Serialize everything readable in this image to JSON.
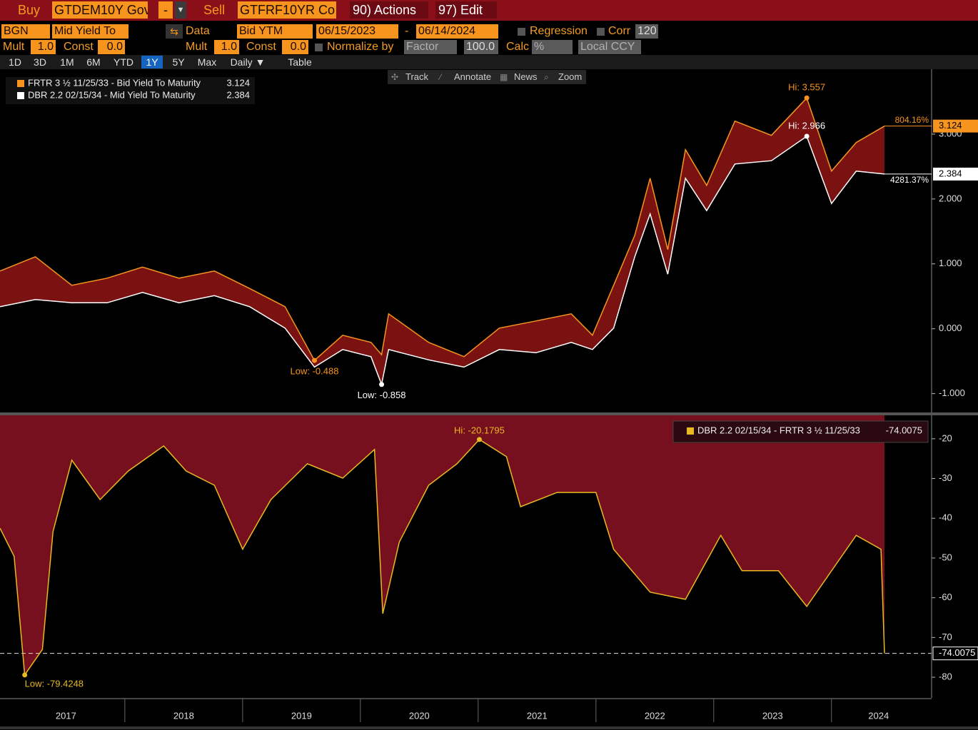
{
  "toolbar": {
    "buy": "Buy",
    "buy_ticker": "GTDEM10Y Gov",
    "minus": "-",
    "sell": "Sell",
    "sell_ticker": "GTFRF10YR Co",
    "actions": "90) Actions",
    "edit": "97) Edit"
  },
  "settings": {
    "source": "BGN",
    "field1": "Mid Yield To",
    "data": "Data",
    "field2": "Bid YTM",
    "start": "06/15/2023",
    "dash": "-",
    "end": "06/14/2024",
    "regression": "Regression",
    "corr": "Corr",
    "corr_n": "120",
    "mult1": "Mult",
    "mult1_v": "1.0",
    "const1": "Const",
    "const1_v": "0.0",
    "mult2": "Mult",
    "mult2_v": "1.0",
    "const2": "Const",
    "const2_v": "0.0",
    "normalize": "Normalize by",
    "factor": "Factor",
    "factor_v": "100.0",
    "calc": "Calc",
    "calc_v": "%",
    "ccy": "Local CCY"
  },
  "periods": [
    "1D",
    "3D",
    "1M",
    "6M",
    "YTD",
    "1Y",
    "5Y",
    "Max",
    "Daily ▼",
    "Table"
  ],
  "active_period": "1Y",
  "chart_tools": [
    "Track",
    "Annotate",
    "News",
    "Zoom"
  ],
  "chart_data": [
    {
      "type": "line",
      "legend": "upper left",
      "grid": false,
      "x": [
        2016.94,
        2017.24,
        2017.55,
        2017.85,
        2018.15,
        2018.46,
        2018.76,
        2019.06,
        2019.36,
        2019.61,
        2019.85,
        2020.09,
        2020.18,
        2020.24,
        2020.58,
        2020.88,
        2021.18,
        2021.49,
        2021.79,
        2021.97,
        2022.15,
        2022.33,
        2022.46,
        2022.61,
        2022.76,
        2022.94,
        2023.18,
        2023.49,
        2023.79,
        2024.0,
        2024.21,
        2024.45
      ],
      "xlim": [
        2016.94,
        2024.85
      ],
      "ylim": [
        -1.29,
        4.0
      ],
      "yticks": [
        {
          "value": -1,
          "label": "-1.000"
        },
        {
          "value": 0,
          "label": "0.000"
        },
        {
          "value": 1,
          "label": "1.000"
        },
        {
          "value": 2,
          "label": "2.000"
        },
        {
          "value": 3,
          "label": "3.000"
        }
      ],
      "band_color": "#7a1212",
      "series": [
        {
          "name": "FRTR 3 ½ 11/25/33 - Bid Yield To Maturity",
          "color": "#f7941d",
          "hi_label": "Hi: 3.557",
          "low_label": "Low: -0.488",
          "change_label": "804.16%",
          "values": [
            0.89,
            1.11,
            0.67,
            0.78,
            0.95,
            0.78,
            0.89,
            0.62,
            0.34,
            -0.488,
            -0.1,
            -0.21,
            -0.4,
            0.23,
            -0.21,
            -0.43,
            0.01,
            0.12,
            0.23,
            -0.1,
            0.67,
            1.44,
            2.32,
            1.22,
            2.76,
            2.21,
            3.2,
            2.98,
            3.557,
            2.43,
            2.87,
            3.124
          ]
        },
        {
          "name": "DBR 2.2 02/15/34 - Mid Yield To Maturity",
          "color": "#ffffff",
          "hi_label": "Hi: 2.966",
          "low_label": "Low: -0.858",
          "change_label": "4281.37%",
          "values": [
            0.34,
            0.45,
            0.4,
            0.4,
            0.56,
            0.4,
            0.51,
            0.34,
            0.01,
            -0.59,
            -0.32,
            -0.43,
            -0.858,
            -0.32,
            -0.48,
            -0.59,
            -0.32,
            -0.37,
            -0.21,
            -0.32,
            0.01,
            1.11,
            1.77,
            0.84,
            2.32,
            1.82,
            2.54,
            2.59,
            2.966,
            1.93,
            2.43,
            2.384
          ]
        }
      ]
    },
    {
      "type": "area",
      "legend": "upper right",
      "grid": false,
      "x": [
        2016.94,
        2017.06,
        2017.15,
        2017.3,
        2017.39,
        2017.55,
        2017.79,
        2018.03,
        2018.33,
        2018.52,
        2018.76,
        2019.0,
        2019.24,
        2019.55,
        2019.85,
        2020.12,
        2020.19,
        2020.33,
        2020.58,
        2020.82,
        2021.01,
        2021.24,
        2021.36,
        2021.67,
        2022.0,
        2022.15,
        2022.46,
        2022.76,
        2023.06,
        2023.24,
        2023.55,
        2023.79,
        2024.21,
        2024.42,
        2024.45
      ],
      "xlim": [
        2016.94,
        2024.85
      ],
      "xticks": [
        {
          "value": 2017.5,
          "label": "2017"
        },
        {
          "value": 2018.5,
          "label": "2018"
        },
        {
          "value": 2019.5,
          "label": "2019"
        },
        {
          "value": 2020.5,
          "label": "2020"
        },
        {
          "value": 2021.5,
          "label": "2021"
        },
        {
          "value": 2022.5,
          "label": "2022"
        },
        {
          "value": 2023.5,
          "label": "2023"
        },
        {
          "value": 2024.4,
          "label": "2024"
        }
      ],
      "ylim": [
        -85.2,
        -14.1
      ],
      "yticks": [
        -20,
        -30,
        -40,
        -50,
        -60,
        -70,
        -80
      ],
      "fill_color": "#760f1e",
      "series": [
        {
          "name": "DBR 2.2 02/15/34 - FRTR 3 ½ 11/25/33",
          "color": "#e8b923",
          "hi_label": "Hi: -20.1795",
          "low_label": "Low: -79.4248",
          "values": [
            -42.5,
            -49.6,
            -79.4248,
            -73,
            -43.4,
            -25.4,
            -35.3,
            -28.1,
            -21.8,
            -28.1,
            -31.7,
            -47.8,
            -35.3,
            -26.3,
            -29.9,
            -22.7,
            -64,
            -46,
            -31.7,
            -26.3,
            -20.1795,
            -24.5,
            -37.1,
            -33.5,
            -33.5,
            -47.8,
            -58.6,
            -60.4,
            -44.3,
            -53.2,
            -53.2,
            -62.2,
            -44.3,
            -47.8,
            -74.0075
          ]
        }
      ]
    }
  ]
}
